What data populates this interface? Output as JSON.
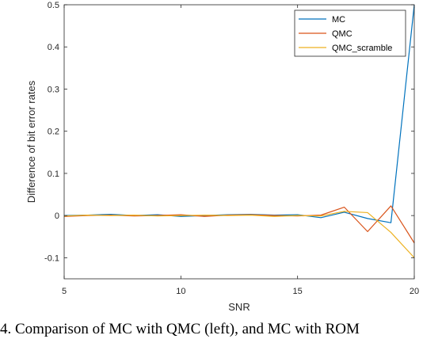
{
  "chart_data": {
    "type": "line",
    "title": "",
    "xlabel": "SNR",
    "ylabel": "Difference of bit error rates",
    "xlim": [
      5,
      20
    ],
    "ylim": [
      -0.15,
      0.5
    ],
    "xticks": [
      5,
      10,
      15,
      20
    ],
    "yticks": [
      -0.1,
      0,
      0.1,
      0.2,
      0.3,
      0.4,
      0.5
    ],
    "ytick_labels": [
      "-0.1",
      "0",
      "0.1",
      "0.2",
      "0.3",
      "0.4",
      "0.5"
    ],
    "xtick_labels": [
      "5",
      "10",
      "15",
      "20"
    ],
    "grid": false,
    "legend_position": "top-right",
    "x": [
      5,
      6,
      7,
      8,
      9,
      10,
      11,
      12,
      13,
      14,
      15,
      16,
      17,
      18,
      19,
      20
    ],
    "series": [
      {
        "name": "MC",
        "color": "#0072BD",
        "values": [
          0.0,
          0.001,
          0.003,
          0.0,
          0.002,
          -0.002,
          0.0,
          0.002,
          0.003,
          0.001,
          0.002,
          -0.005,
          0.008,
          -0.007,
          -0.017,
          0.5
        ]
      },
      {
        "name": "QMC",
        "color": "#D95319",
        "values": [
          -0.002,
          0.0,
          0.001,
          -0.001,
          0.0,
          0.002,
          -0.002,
          0.001,
          0.002,
          0.0,
          -0.001,
          0.001,
          0.02,
          -0.038,
          0.023,
          -0.065
        ]
      },
      {
        "name": "QMC_scramble",
        "color": "#EDB120",
        "values": [
          -0.001,
          0.001,
          0.0,
          0.001,
          -0.001,
          0.0,
          0.001,
          0.0,
          0.001,
          -0.002,
          0.0,
          -0.001,
          0.01,
          0.007,
          -0.04,
          -0.1
        ]
      }
    ]
  },
  "caption": {
    "text": "4.   Comparison of MC with QMC (left), and MC with ROM"
  }
}
